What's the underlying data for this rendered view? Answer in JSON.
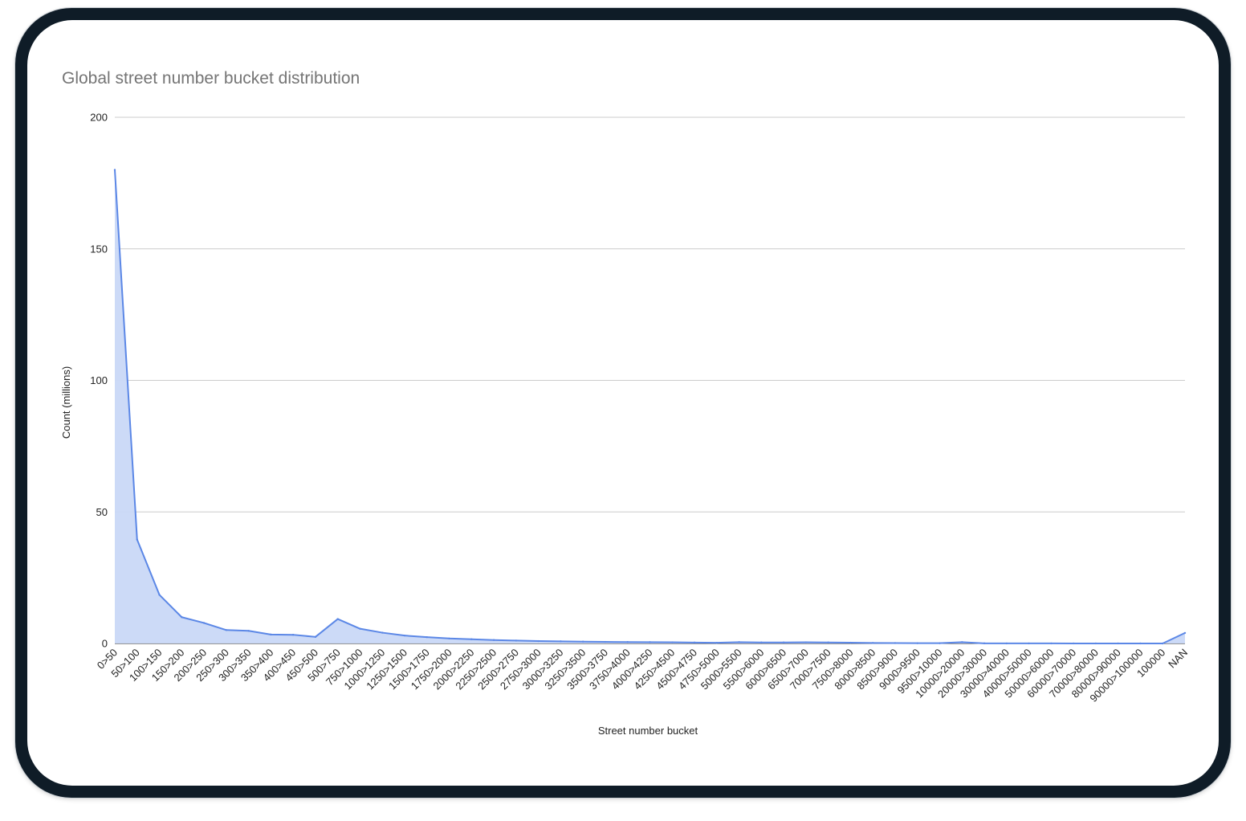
{
  "colors": {
    "frame": "#0f1c27",
    "line": "#5b87e6",
    "fill": "#c9d8f7",
    "grid": "#cccccc",
    "title": "#757575"
  },
  "chart_data": {
    "type": "area",
    "title": "Global street number bucket distribution",
    "xlabel": "Street number bucket",
    "ylabel": "Count (millions)",
    "ylim": [
      0,
      200
    ],
    "yticks": [
      0,
      50,
      100,
      150,
      200
    ],
    "grid": true,
    "legend": "none",
    "categories": [
      "0>50",
      "50>100",
      "100>150",
      "150>200",
      "200>250",
      "250>300",
      "300>350",
      "350>400",
      "400>450",
      "450>500",
      "500>750",
      "750>1000",
      "1000>1250",
      "1250>1500",
      "1500>1750",
      "1750>2000",
      "2000>2250",
      "2250>2500",
      "2500>2750",
      "2750>3000",
      "3000>3250",
      "3250>3500",
      "3500>3750",
      "3750>4000",
      "4000>4250",
      "4250>4500",
      "4500>4750",
      "4750>5000",
      "5000>5500",
      "5500>6000",
      "6000>6500",
      "6500>7000",
      "7000>7500",
      "7500>8000",
      "8000>8500",
      "8500>9000",
      "9000>9500",
      "9500>10000",
      "10000>20000",
      "20000>30000",
      "30000>40000",
      "40000>50000",
      "50000>60000",
      "60000>70000",
      "70000>80000",
      "80000>90000",
      "90000>100000",
      "100000",
      "NAN"
    ],
    "series": [
      {
        "values": [
          180,
          39.5,
          18.5,
          10,
          7.8,
          5.1,
          4.8,
          3.4,
          3.3,
          2.5,
          9.3,
          5.6,
          4.1,
          3.0,
          2.4,
          1.9,
          1.6,
          1.3,
          1.1,
          0.9,
          0.8,
          0.7,
          0.6,
          0.55,
          0.5,
          0.45,
          0.35,
          0.25,
          0.5,
          0.4,
          0.4,
          0.45,
          0.4,
          0.3,
          0.2,
          0.15,
          0.1,
          0.1,
          0.5,
          0.05,
          0.03,
          0.02,
          0.02,
          0.01,
          0.01,
          0.01,
          0.01,
          0.0,
          4.0
        ]
      }
    ]
  }
}
